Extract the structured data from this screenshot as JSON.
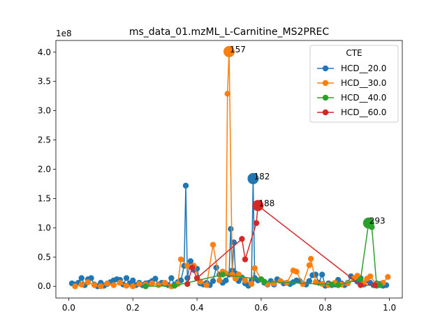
{
  "chart_data": {
    "type": "scatter",
    "title": "ms_data_01.mzML_L-Carnitine_MS2PREC",
    "xlabel": "",
    "ylabel": "",
    "y_scale_label": "1e8",
    "xlim": [
      -0.04,
      1.04
    ],
    "ylim": [
      -0.2,
      4.2
    ],
    "x_ticks": [
      0.0,
      0.2,
      0.4,
      0.6,
      0.8,
      1.0
    ],
    "x_tick_labels": [
      "0.0",
      "0.2",
      "0.4",
      "0.6",
      "0.8",
      "1.0"
    ],
    "y_ticks": [
      0.0,
      0.5,
      1.0,
      1.5,
      2.0,
      2.5,
      3.0,
      3.5,
      4.0
    ],
    "y_tick_labels": [
      "0.0",
      "0.5",
      "1.0",
      "1.5",
      "2.0",
      "2.5",
      "3.0",
      "3.5",
      "4.0"
    ],
    "grid": false,
    "legend": {
      "title": "CTE",
      "position": "top-right"
    },
    "series": [
      {
        "name": "HCD__20.0",
        "color": "#1f77b4",
        "points": [
          [
            0.01,
            0.05
          ],
          [
            0.02,
            0.03
          ],
          [
            0.03,
            0.06
          ],
          [
            0.04,
            0.14
          ],
          [
            0.05,
            0.02
          ],
          [
            0.06,
            0.12
          ],
          [
            0.07,
            0.14
          ],
          [
            0.08,
            0.03
          ],
          [
            0.09,
            0.0
          ],
          [
            0.1,
            0.06
          ],
          [
            0.11,
            0.01
          ],
          [
            0.12,
            0.04
          ],
          [
            0.13,
            0.07
          ],
          [
            0.14,
            0.1
          ],
          [
            0.15,
            0.12
          ],
          [
            0.16,
            0.11
          ],
          [
            0.17,
            0.03
          ],
          [
            0.18,
            0.14
          ],
          [
            0.19,
            0.05
          ],
          [
            0.2,
            0.1
          ],
          [
            0.21,
            0.02
          ],
          [
            0.22,
            0.06
          ],
          [
            0.23,
            0.02
          ],
          [
            0.24,
            0.05
          ],
          [
            0.25,
            0.06
          ],
          [
            0.26,
            0.09
          ],
          [
            0.27,
            0.13
          ],
          [
            0.28,
            0.03
          ],
          [
            0.29,
            0.06
          ],
          [
            0.3,
            0.04
          ],
          [
            0.31,
            0.02
          ],
          [
            0.32,
            0.14
          ],
          [
            0.33,
            0.03
          ],
          [
            0.34,
            0.07
          ],
          [
            0.35,
            0.1
          ],
          [
            0.36,
            0.35
          ],
          [
            0.365,
            1.72
          ],
          [
            0.37,
            0.14
          ],
          [
            0.38,
            0.43
          ],
          [
            0.39,
            0.28
          ],
          [
            0.4,
            0.3
          ],
          [
            0.41,
            0.05
          ],
          [
            0.42,
            0.03
          ],
          [
            0.43,
            0.06
          ],
          [
            0.44,
            0.02
          ],
          [
            0.45,
            0.09
          ],
          [
            0.46,
            0.32
          ],
          [
            0.47,
            0.2
          ],
          [
            0.48,
            0.06
          ],
          [
            0.49,
            0.1
          ],
          [
            0.5,
            0.2
          ],
          [
            0.505,
            0.98
          ],
          [
            0.51,
            0.27
          ],
          [
            0.515,
            0.75
          ],
          [
            0.52,
            0.22
          ],
          [
            0.53,
            0.09
          ],
          [
            0.54,
            0.15
          ],
          [
            0.55,
            0.05
          ],
          [
            0.56,
            0.01
          ],
          [
            0.57,
            0.1
          ],
          [
            0.575,
            1.84
          ],
          [
            0.58,
            0.14
          ],
          [
            0.59,
            0.1
          ],
          [
            0.6,
            0.12
          ],
          [
            0.61,
            0.06
          ],
          [
            0.62,
            0.03
          ],
          [
            0.63,
            0.09
          ],
          [
            0.64,
            0.03
          ],
          [
            0.65,
            0.12
          ],
          [
            0.66,
            0.09
          ],
          [
            0.67,
            0.05
          ],
          [
            0.68,
            0.06
          ],
          [
            0.69,
            0.04
          ],
          [
            0.7,
            0.07
          ],
          [
            0.71,
            0.1
          ],
          [
            0.72,
            0.09
          ],
          [
            0.73,
            0.04
          ],
          [
            0.74,
            0.03
          ],
          [
            0.75,
            0.09
          ],
          [
            0.76,
            0.19
          ],
          [
            0.77,
            0.2
          ],
          [
            0.78,
            0.06
          ],
          [
            0.79,
            0.2
          ],
          [
            0.8,
            0.01
          ],
          [
            0.81,
            0.05
          ],
          [
            0.82,
            0.02
          ],
          [
            0.83,
            0.03
          ],
          [
            0.84,
            0.11
          ],
          [
            0.85,
            0.05
          ],
          [
            0.86,
            0.02
          ],
          [
            0.87,
            0.06
          ],
          [
            0.88,
            0.17
          ],
          [
            0.89,
            0.12
          ],
          [
            0.9,
            0.08
          ],
          [
            0.91,
            0.14
          ],
          [
            0.92,
            0.03
          ],
          [
            0.93,
            0.1
          ],
          [
            0.94,
            0.06
          ],
          [
            0.95,
            0.02
          ],
          [
            0.96,
            0.05
          ],
          [
            0.97,
            0.04
          ],
          [
            0.98,
            0.01
          ],
          [
            0.99,
            0.02
          ]
        ]
      },
      {
        "name": "HCD__30.0",
        "color": "#ff7f0e",
        "points": [
          [
            0.02,
            0.0
          ],
          [
            0.04,
            0.03
          ],
          [
            0.06,
            0.07
          ],
          [
            0.08,
            0.02
          ],
          [
            0.1,
            0.0
          ],
          [
            0.12,
            0.05
          ],
          [
            0.14,
            0.02
          ],
          [
            0.16,
            0.06
          ],
          [
            0.18,
            0.01
          ],
          [
            0.2,
            0.0
          ],
          [
            0.22,
            0.04
          ],
          [
            0.24,
            0.03
          ],
          [
            0.26,
            0.05
          ],
          [
            0.28,
            0.02
          ],
          [
            0.3,
            0.06
          ],
          [
            0.32,
            0.0
          ],
          [
            0.34,
            0.04
          ],
          [
            0.35,
            0.46
          ],
          [
            0.37,
            0.35
          ],
          [
            0.39,
            0.35
          ],
          [
            0.41,
            0.08
          ],
          [
            0.43,
            0.02
          ],
          [
            0.45,
            0.71
          ],
          [
            0.47,
            0.1
          ],
          [
            0.48,
            0.25
          ],
          [
            0.49,
            0.22
          ],
          [
            0.495,
            3.29
          ],
          [
            0.5,
            4.01
          ],
          [
            0.51,
            0.2
          ],
          [
            0.52,
            0.13
          ],
          [
            0.53,
            0.2
          ],
          [
            0.55,
            0.1
          ],
          [
            0.57,
            0.04
          ],
          [
            0.58,
            0.31
          ],
          [
            0.6,
            0.12
          ],
          [
            0.62,
            0.04
          ],
          [
            0.64,
            0.05
          ],
          [
            0.66,
            0.09
          ],
          [
            0.68,
            0.06
          ],
          [
            0.7,
            0.27
          ],
          [
            0.71,
            0.25
          ],
          [
            0.73,
            0.04
          ],
          [
            0.75,
            0.36
          ],
          [
            0.755,
            0.47
          ],
          [
            0.77,
            0.07
          ],
          [
            0.79,
            0.04
          ],
          [
            0.81,
            0.02
          ],
          [
            0.83,
            0.06
          ],
          [
            0.85,
            0.03
          ],
          [
            0.87,
            0.05
          ],
          [
            0.89,
            0.14
          ],
          [
            0.9,
            0.18
          ],
          [
            0.92,
            0.05
          ],
          [
            0.93,
            0.13
          ],
          [
            0.94,
            0.17
          ],
          [
            0.96,
            0.03
          ],
          [
            0.98,
            0.06
          ],
          [
            0.995,
            0.16
          ]
        ]
      },
      {
        "name": "HCD__40.0",
        "color": "#2ca02c",
        "points": [
          [
            0.24,
            0.0
          ],
          [
            0.33,
            0.01
          ],
          [
            0.48,
            0.2
          ],
          [
            0.6,
            0.12
          ],
          [
            0.61,
            0.08
          ],
          [
            0.82,
            0.03
          ],
          [
            0.84,
            0.02
          ],
          [
            0.91,
            0.12
          ],
          [
            0.935,
            1.08
          ],
          [
            0.945,
            1.01
          ],
          [
            0.96,
            0.01
          ],
          [
            0.97,
            0.02
          ]
        ]
      },
      {
        "name": "HCD__60.0",
        "color": "#d62728",
        "points": [
          [
            0.37,
            0.04
          ],
          [
            0.385,
            0.32
          ],
          [
            0.4,
            0.14
          ],
          [
            0.54,
            0.81
          ],
          [
            0.55,
            0.46
          ],
          [
            0.585,
            1.08
          ],
          [
            0.59,
            1.38
          ],
          [
            0.91,
            0.02
          ],
          [
            0.955,
            0.02
          ]
        ]
      }
    ],
    "annotations": [
      {
        "text": "157",
        "x": 0.5,
        "y": 4.01,
        "series": "HCD__30.0"
      },
      {
        "text": "182",
        "x": 0.575,
        "y": 1.84,
        "series": "HCD__20.0"
      },
      {
        "text": "188",
        "x": 0.59,
        "y": 1.38,
        "series": "HCD__60.0"
      },
      {
        "text": "293",
        "x": 0.935,
        "y": 1.08,
        "series": "HCD__40.0"
      }
    ]
  }
}
